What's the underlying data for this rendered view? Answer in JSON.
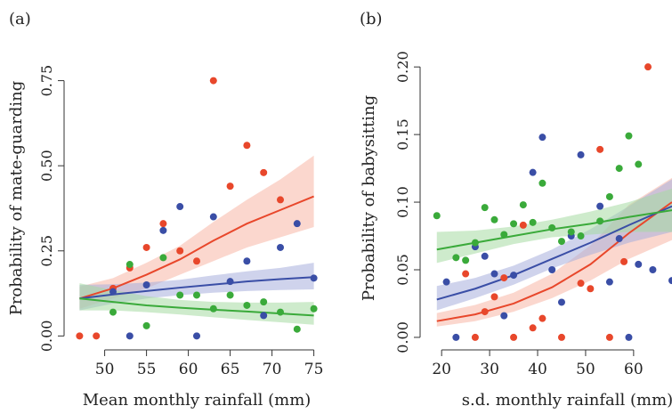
{
  "colors": {
    "red": "#e8472b",
    "blue": "#3a4ea6",
    "green": "#3aaa3a",
    "red_band": "#f7b7a6",
    "blue_band": "#a8aedd",
    "green_band": "#a5dba3"
  },
  "chart_data": [
    {
      "type": "scatter",
      "panel_label": "(a)",
      "xlabel": "Mean monthly rainfall (mm)",
      "ylabel": "Probability of mate-guarding",
      "xlim": [
        46,
        76
      ],
      "ylim": [
        -0.02,
        0.83
      ],
      "xticks": [
        "50",
        "55",
        "60",
        "65",
        "70",
        "75"
      ],
      "xtick_values": [
        50,
        55,
        60,
        65,
        70,
        75
      ],
      "yticks": [
        "0.00",
        "0.25",
        "0.50",
        "0.75"
      ],
      "ytick_values": [
        0,
        0.25,
        0.5,
        0.75
      ],
      "grid": false,
      "series": [
        {
          "color": "red",
          "points": [
            [
              47,
              0
            ],
            [
              49,
              0
            ],
            [
              51,
              0.14
            ],
            [
              53,
              0.2
            ],
            [
              55,
              0.26
            ],
            [
              57,
              0.33
            ],
            [
              59,
              0.25
            ],
            [
              61,
              0.22
            ],
            [
              63,
              0.75
            ],
            [
              65,
              0.44
            ],
            [
              67,
              0.56
            ],
            [
              69,
              0.48
            ],
            [
              71,
              0.4
            ]
          ],
          "fit": [
            [
              47,
              0.11
            ],
            [
              51,
              0.14
            ],
            [
              55,
              0.18
            ],
            [
              59,
              0.225
            ],
            [
              63,
              0.28
            ],
            [
              67,
              0.33
            ],
            [
              71,
              0.37
            ],
            [
              75,
              0.41
            ]
          ],
          "band_lower": [
            [
              47,
              0.08
            ],
            [
              51,
              0.11
            ],
            [
              55,
              0.14
            ],
            [
              59,
              0.18
            ],
            [
              63,
              0.22
            ],
            [
              67,
              0.26
            ],
            [
              71,
              0.29
            ],
            [
              75,
              0.32
            ]
          ],
          "band_upper": [
            [
              47,
              0.145
            ],
            [
              51,
              0.17
            ],
            [
              55,
              0.215
            ],
            [
              59,
              0.265
            ],
            [
              63,
              0.335
            ],
            [
              67,
              0.4
            ],
            [
              71,
              0.46
            ],
            [
              75,
              0.53
            ]
          ]
        },
        {
          "color": "blue",
          "points": [
            [
              51,
              0.13
            ],
            [
              53,
              0
            ],
            [
              55,
              0.15
            ],
            [
              57,
              0.31
            ],
            [
              59,
              0.38
            ],
            [
              61,
              0
            ],
            [
              63,
              0.35
            ],
            [
              65,
              0.16
            ],
            [
              67,
              0.22
            ],
            [
              69,
              0.06
            ],
            [
              71,
              0.26
            ],
            [
              73,
              0.33
            ],
            [
              75,
              0.17
            ]
          ],
          "fit": [
            [
              47,
              0.11
            ],
            [
              51,
              0.122
            ],
            [
              55,
              0.132
            ],
            [
              59,
              0.142
            ],
            [
              63,
              0.151
            ],
            [
              67,
              0.16
            ],
            [
              71,
              0.167
            ],
            [
              75,
              0.173
            ]
          ],
          "band_lower": [
            [
              47,
              0.075
            ],
            [
              51,
              0.095
            ],
            [
              55,
              0.11
            ],
            [
              59,
              0.12
            ],
            [
              63,
              0.127
            ],
            [
              67,
              0.132
            ],
            [
              71,
              0.135
            ],
            [
              75,
              0.137
            ]
          ],
          "band_upper": [
            [
              47,
              0.15
            ],
            [
              51,
              0.152
            ],
            [
              55,
              0.157
            ],
            [
              59,
              0.165
            ],
            [
              63,
              0.178
            ],
            [
              67,
              0.19
            ],
            [
              71,
              0.2
            ],
            [
              75,
              0.215
            ]
          ]
        },
        {
          "color": "green",
          "points": [
            [
              51,
              0.07
            ],
            [
              53,
              0.21
            ],
            [
              55,
              0.03
            ],
            [
              57,
              0.23
            ],
            [
              59,
              0.12
            ],
            [
              61,
              0.12
            ],
            [
              63,
              0.08
            ],
            [
              65,
              0.12
            ],
            [
              67,
              0.09
            ],
            [
              69,
              0.1
            ],
            [
              71,
              0.07
            ],
            [
              73,
              0.02
            ],
            [
              75,
              0.08
            ]
          ],
          "fit": [
            [
              47,
              0.11
            ],
            [
              51,
              0.1
            ],
            [
              55,
              0.09
            ],
            [
              59,
              0.083
            ],
            [
              63,
              0.077
            ],
            [
              67,
              0.072
            ],
            [
              71,
              0.066
            ],
            [
              75,
              0.06
            ]
          ],
          "band_lower": [
            [
              47,
              0.075
            ],
            [
              51,
              0.075
            ],
            [
              55,
              0.07
            ],
            [
              59,
              0.063
            ],
            [
              63,
              0.055
            ],
            [
              67,
              0.047
            ],
            [
              71,
              0.04
            ],
            [
              75,
              0.033
            ]
          ],
          "band_upper": [
            [
              47,
              0.155
            ],
            [
              51,
              0.135
            ],
            [
              55,
              0.117
            ],
            [
              59,
              0.106
            ],
            [
              63,
              0.1
            ],
            [
              67,
              0.098
            ],
            [
              71,
              0.098
            ],
            [
              75,
              0.1
            ]
          ]
        }
      ]
    },
    {
      "type": "scatter",
      "panel_label": "(b)",
      "xlabel": "s.d. monthly rainfall (mm)",
      "ylabel": "Probability of babysitting",
      "xlim": [
        17,
        68
      ],
      "ylim": [
        -0.004,
        0.21
      ],
      "xticks": [
        "20",
        "30",
        "40",
        "50",
        "60"
      ],
      "xtick_values": [
        20,
        30,
        40,
        50,
        60
      ],
      "yticks": [
        "0.00",
        "0.05",
        "0.10",
        "0.15",
        "0.20"
      ],
      "ytick_values": [
        0,
        0.05,
        0.1,
        0.15,
        0.2
      ],
      "grid": false,
      "series": [
        {
          "color": "red",
          "points": [
            [
              25,
              0.047
            ],
            [
              27,
              0
            ],
            [
              29,
              0.019
            ],
            [
              31,
              0.03
            ],
            [
              33,
              0.044
            ],
            [
              35,
              0
            ],
            [
              37,
              0.083
            ],
            [
              39,
              0.007
            ],
            [
              41,
              0.014
            ],
            [
              45,
              0
            ],
            [
              49,
              0.04
            ],
            [
              51,
              0.036
            ],
            [
              53,
              0.139
            ],
            [
              55,
              0
            ],
            [
              58,
              0.056
            ],
            [
              63,
              0.2
            ]
          ],
          "fit": [
            [
              19,
              0.012
            ],
            [
              27,
              0.017
            ],
            [
              35,
              0.025
            ],
            [
              43,
              0.037
            ],
            [
              51,
              0.054
            ],
            [
              59,
              0.077
            ],
            [
              68,
              0.1
            ]
          ],
          "band_lower": [
            [
              19,
              0.008
            ],
            [
              27,
              0.012
            ],
            [
              35,
              0.019
            ],
            [
              43,
              0.029
            ],
            [
              51,
              0.042
            ],
            [
              59,
              0.058
            ],
            [
              68,
              0.072
            ]
          ],
          "band_upper": [
            [
              19,
              0.018
            ],
            [
              27,
              0.024
            ],
            [
              35,
              0.033
            ],
            [
              43,
              0.047
            ],
            [
              51,
              0.068
            ],
            [
              59,
              0.098
            ],
            [
              68,
              0.118
            ]
          ]
        },
        {
          "color": "blue",
          "points": [
            [
              21,
              0.041
            ],
            [
              23,
              0
            ],
            [
              27,
              0.067
            ],
            [
              29,
              0.06
            ],
            [
              31,
              0.047
            ],
            [
              33,
              0.016
            ],
            [
              35,
              0.046
            ],
            [
              39,
              0.122
            ],
            [
              41,
              0.148
            ],
            [
              43,
              0.05
            ],
            [
              45,
              0.026
            ],
            [
              47,
              0.075
            ],
            [
              49,
              0.135
            ],
            [
              53,
              0.097
            ],
            [
              55,
              0.041
            ],
            [
              57,
              0.073
            ],
            [
              59,
              0
            ],
            [
              61,
              0.054
            ],
            [
              64,
              0.05
            ],
            [
              68,
              0.042
            ]
          ],
          "fit": [
            [
              19,
              0.028
            ],
            [
              27,
              0.036
            ],
            [
              35,
              0.046
            ],
            [
              43,
              0.058
            ],
            [
              51,
              0.07
            ],
            [
              59,
              0.083
            ],
            [
              68,
              0.097
            ]
          ],
          "band_lower": [
            [
              19,
              0.02
            ],
            [
              27,
              0.029
            ],
            [
              35,
              0.039
            ],
            [
              43,
              0.051
            ],
            [
              51,
              0.061
            ],
            [
              59,
              0.07
            ],
            [
              68,
              0.078
            ]
          ],
          "band_upper": [
            [
              19,
              0.038
            ],
            [
              27,
              0.044
            ],
            [
              35,
              0.053
            ],
            [
              43,
              0.065
            ],
            [
              51,
              0.08
            ],
            [
              59,
              0.097
            ],
            [
              68,
              0.117
            ]
          ]
        },
        {
          "color": "green",
          "points": [
            [
              19,
              0.09
            ],
            [
              23,
              0.059
            ],
            [
              25,
              0.057
            ],
            [
              27,
              0.07
            ],
            [
              29,
              0.096
            ],
            [
              31,
              0.087
            ],
            [
              33,
              0.076
            ],
            [
              35,
              0.084
            ],
            [
              37,
              0.098
            ],
            [
              39,
              0.085
            ],
            [
              41,
              0.114
            ],
            [
              43,
              0.081
            ],
            [
              45,
              0.071
            ],
            [
              47,
              0.078
            ],
            [
              49,
              0.075
            ],
            [
              53,
              0.086
            ],
            [
              55,
              0.104
            ],
            [
              57,
              0.125
            ],
            [
              59,
              0.149
            ],
            [
              61,
              0.128
            ]
          ],
          "fit": [
            [
              19,
              0.065
            ],
            [
              27,
              0.07
            ],
            [
              35,
              0.075
            ],
            [
              43,
              0.08
            ],
            [
              51,
              0.084
            ],
            [
              59,
              0.089
            ],
            [
              68,
              0.094
            ]
          ],
          "band_lower": [
            [
              19,
              0.055
            ],
            [
              27,
              0.062
            ],
            [
              35,
              0.069
            ],
            [
              43,
              0.074
            ],
            [
              51,
              0.076
            ],
            [
              59,
              0.078
            ],
            [
              68,
              0.078
            ]
          ],
          "band_upper": [
            [
              19,
              0.078
            ],
            [
              27,
              0.079
            ],
            [
              35,
              0.082
            ],
            [
              43,
              0.087
            ],
            [
              51,
              0.093
            ],
            [
              59,
              0.1
            ],
            [
              68,
              0.11
            ]
          ]
        }
      ]
    }
  ]
}
